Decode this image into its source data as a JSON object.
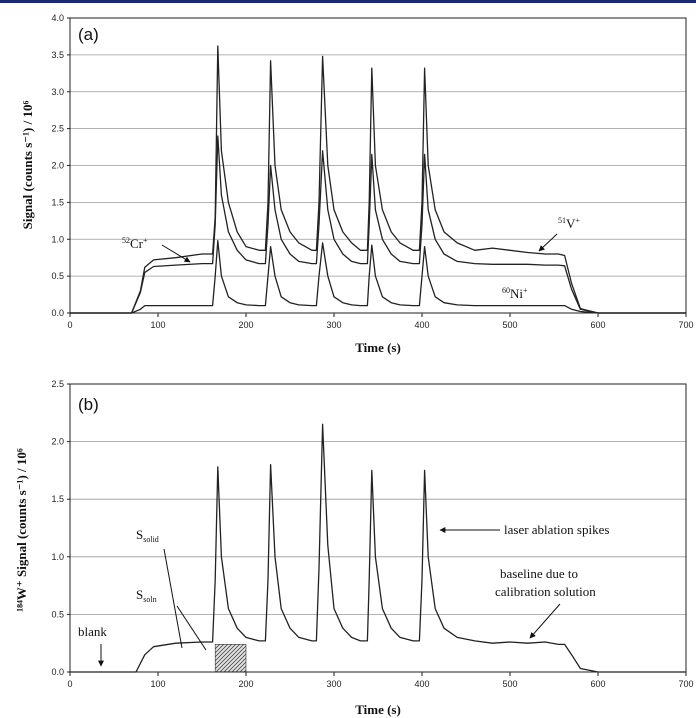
{
  "chart_data": [
    {
      "type": "line",
      "panel_label": "(a)",
      "xlabel": "Time (s)",
      "ylabel": "Signal (counts s⁻¹) / 10⁶",
      "xlim": [
        0,
        700
      ],
      "ylim": [
        0,
        4.0
      ],
      "xticks": [
        "0",
        "100",
        "200",
        "300",
        "400",
        "500",
        "600",
        "700"
      ],
      "yticks": [
        "0.0",
        "0.5",
        "1.0",
        "1.5",
        "2.0",
        "2.5",
        "3.0",
        "3.5",
        "4.0"
      ],
      "grid": "horizontal",
      "series": [
        {
          "name": "51V+",
          "color": "#222222",
          "x": [
            0,
            70,
            80,
            85,
            95,
            120,
            150,
            162,
            165,
            168,
            172,
            180,
            190,
            200,
            215,
            222,
            225,
            228,
            233,
            240,
            250,
            260,
            275,
            280,
            283,
            287,
            293,
            300,
            310,
            320,
            330,
            338,
            340,
            343,
            347,
            355,
            365,
            375,
            390,
            397,
            400,
            403,
            407,
            415,
            425,
            440,
            460,
            480,
            500,
            520,
            540,
            555,
            562,
            570,
            580,
            600,
            700
          ],
          "y": [
            0,
            0,
            0.3,
            0.62,
            0.72,
            0.75,
            0.8,
            0.8,
            1.3,
            3.62,
            2.2,
            1.5,
            1.1,
            0.9,
            0.85,
            0.85,
            1.5,
            3.42,
            2.0,
            1.4,
            1.1,
            0.95,
            0.85,
            0.85,
            1.5,
            3.48,
            2.0,
            1.4,
            1.1,
            0.95,
            0.85,
            0.85,
            1.5,
            3.32,
            2.0,
            1.4,
            1.1,
            0.95,
            0.85,
            0.85,
            1.5,
            3.32,
            2.0,
            1.4,
            1.1,
            0.95,
            0.85,
            0.88,
            0.85,
            0.82,
            0.8,
            0.8,
            0.78,
            0.4,
            0.06,
            0,
            0
          ]
        },
        {
          "name": "52Cr+",
          "color": "#222222",
          "x": [
            0,
            70,
            80,
            85,
            95,
            120,
            150,
            162,
            165,
            168,
            172,
            180,
            190,
            200,
            215,
            222,
            225,
            228,
            233,
            240,
            250,
            260,
            275,
            280,
            283,
            287,
            293,
            300,
            310,
            320,
            330,
            338,
            340,
            343,
            347,
            355,
            365,
            375,
            390,
            397,
            400,
            403,
            407,
            415,
            425,
            440,
            460,
            480,
            500,
            520,
            540,
            555,
            562,
            570,
            580,
            600,
            700
          ],
          "y": [
            0,
            0,
            0.28,
            0.55,
            0.63,
            0.65,
            0.67,
            0.67,
            1.2,
            2.4,
            1.6,
            1.1,
            0.85,
            0.72,
            0.67,
            0.67,
            1.2,
            2.0,
            1.4,
            1.0,
            0.8,
            0.7,
            0.67,
            0.67,
            1.2,
            2.2,
            1.4,
            1.0,
            0.8,
            0.7,
            0.67,
            0.67,
            1.2,
            2.15,
            1.4,
            1.0,
            0.8,
            0.7,
            0.67,
            0.67,
            1.2,
            2.15,
            1.4,
            1.0,
            0.8,
            0.7,
            0.67,
            0.66,
            0.66,
            0.66,
            0.65,
            0.65,
            0.64,
            0.32,
            0.05,
            0,
            0
          ]
        },
        {
          "name": "60Ni+",
          "color": "#222222",
          "x": [
            0,
            70,
            80,
            85,
            95,
            120,
            150,
            162,
            165,
            168,
            172,
            180,
            190,
            200,
            215,
            222,
            225,
            228,
            233,
            240,
            250,
            260,
            275,
            280,
            283,
            287,
            293,
            300,
            310,
            320,
            330,
            338,
            340,
            343,
            347,
            355,
            365,
            375,
            390,
            397,
            400,
            403,
            407,
            415,
            425,
            440,
            460,
            480,
            500,
            520,
            540,
            555,
            562,
            570,
            580,
            600,
            700
          ],
          "y": [
            0,
            0,
            0.05,
            0.1,
            0.1,
            0.1,
            0.1,
            0.1,
            0.5,
            0.98,
            0.5,
            0.22,
            0.14,
            0.11,
            0.1,
            0.1,
            0.5,
            0.9,
            0.5,
            0.22,
            0.14,
            0.11,
            0.1,
            0.1,
            0.5,
            0.95,
            0.5,
            0.22,
            0.14,
            0.11,
            0.1,
            0.1,
            0.5,
            0.92,
            0.5,
            0.22,
            0.14,
            0.11,
            0.1,
            0.1,
            0.5,
            0.9,
            0.5,
            0.22,
            0.14,
            0.11,
            0.1,
            0.1,
            0.1,
            0.1,
            0.1,
            0.1,
            0.1,
            0.05,
            0.02,
            0,
            0
          ]
        }
      ],
      "annotations": [
        {
          "id": "cr",
          "label": "Cr",
          "sup": "52",
          "suffix": "+"
        },
        {
          "id": "v",
          "label": "V",
          "sup": "51",
          "suffix": "+"
        },
        {
          "id": "ni",
          "label": "Ni",
          "sup": "60",
          "suffix": "+"
        }
      ]
    },
    {
      "type": "line",
      "panel_label": "(b)",
      "xlabel": "Time (s)",
      "ylabel": "¹⁸⁴W⁺ Signal (counts s⁻¹) / 10⁶",
      "xlim": [
        0,
        700
      ],
      "ylim": [
        0,
        2.5
      ],
      "xticks": [
        "0",
        "100",
        "200",
        "300",
        "400",
        "500",
        "600",
        "700"
      ],
      "yticks": [
        "0.0",
        "0.5",
        "1.0",
        "1.5",
        "2.0",
        "2.5"
      ],
      "grid": "horizontal",
      "series": [
        {
          "name": "184W+",
          "color": "#222222",
          "x": [
            0,
            75,
            85,
            95,
            120,
            150,
            162,
            165,
            168,
            172,
            180,
            190,
            200,
            215,
            222,
            225,
            228,
            233,
            240,
            250,
            260,
            275,
            280,
            283,
            287,
            293,
            300,
            310,
            320,
            330,
            338,
            340,
            343,
            347,
            355,
            365,
            375,
            390,
            397,
            400,
            403,
            407,
            415,
            425,
            440,
            460,
            480,
            500,
            520,
            540,
            555,
            562,
            570,
            580,
            600,
            700
          ],
          "y": [
            0,
            0,
            0.15,
            0.22,
            0.25,
            0.26,
            0.26,
            0.8,
            1.78,
            1.0,
            0.55,
            0.38,
            0.3,
            0.27,
            0.27,
            0.8,
            1.8,
            1.0,
            0.55,
            0.38,
            0.3,
            0.27,
            0.27,
            0.9,
            2.15,
            1.1,
            0.55,
            0.38,
            0.3,
            0.27,
            0.27,
            0.8,
            1.75,
            1.0,
            0.55,
            0.38,
            0.3,
            0.27,
            0.27,
            0.8,
            1.75,
            1.0,
            0.55,
            0.38,
            0.3,
            0.27,
            0.25,
            0.26,
            0.25,
            0.26,
            0.24,
            0.24,
            0.15,
            0.03,
            0,
            0
          ]
        }
      ],
      "shaded_region": {
        "x": [
          165,
          200
        ],
        "y": [
          0,
          0.24
        ]
      },
      "annotations": [
        {
          "id": "ssolid",
          "label": "S",
          "sub": "solid"
        },
        {
          "id": "ssoln",
          "label": "S",
          "sub": "soln"
        },
        {
          "id": "spikes",
          "label": "laser ablation spikes"
        },
        {
          "id": "baseline1",
          "label": "baseline due to"
        },
        {
          "id": "baseline2",
          "label": "calibration solution"
        },
        {
          "id": "blank",
          "label": "blank"
        }
      ]
    }
  ]
}
